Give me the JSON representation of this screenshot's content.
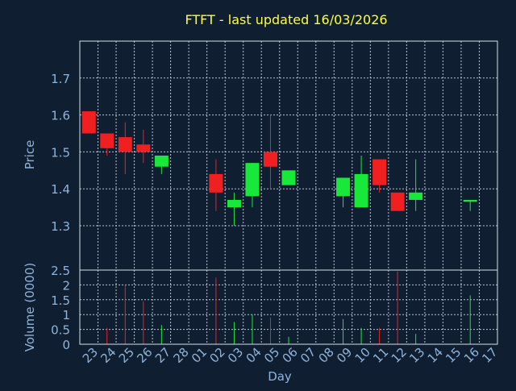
{
  "colors": {
    "background": "#0f1e30",
    "title": "#ffff33",
    "axis_text": "#8fb4dc",
    "grid": "#b8c4d2",
    "plot_border": "#d8e0ea",
    "up": "#18e83a",
    "down": "#f02020"
  },
  "chart_data": [
    {
      "type": "candlestick",
      "title": "FTFT - last updated 16/03/2026",
      "ylabel": "Price",
      "ylim": [
        1.18,
        1.8
      ],
      "yticks": [
        "1.3",
        "1.4",
        "1.5",
        "1.6",
        "1.7"
      ],
      "ytick_values": [
        1.3,
        1.4,
        1.5,
        1.6,
        1.7
      ],
      "grid": true,
      "candles": [
        {
          "day": "23",
          "open": 1.61,
          "high": 1.61,
          "low": 1.55,
          "close": 1.55
        },
        {
          "day": "24",
          "open": 1.55,
          "high": 1.55,
          "low": 1.49,
          "close": 1.51
        },
        {
          "day": "25",
          "open": 1.54,
          "high": 1.58,
          "low": 1.44,
          "close": 1.5
        },
        {
          "day": "26",
          "open": 1.52,
          "high": 1.56,
          "low": 1.47,
          "close": 1.5
        },
        {
          "day": "27",
          "open": 1.46,
          "high": 1.49,
          "low": 1.44,
          "close": 1.49
        },
        {
          "day": "02",
          "open": 1.44,
          "high": 1.48,
          "low": 1.34,
          "close": 1.39
        },
        {
          "day": "03",
          "open": 1.35,
          "high": 1.39,
          "low": 1.3,
          "close": 1.37
        },
        {
          "day": "04",
          "open": 1.38,
          "high": 1.47,
          "low": 1.35,
          "close": 1.47
        },
        {
          "day": "05",
          "open": 1.5,
          "high": 1.6,
          "low": 1.4,
          "close": 1.46
        },
        {
          "day": "06",
          "open": 1.41,
          "high": 1.45,
          "low": 1.41,
          "close": 1.45
        },
        {
          "day": "09",
          "open": 1.38,
          "high": 1.43,
          "low": 1.35,
          "close": 1.43
        },
        {
          "day": "10",
          "open": 1.35,
          "high": 1.49,
          "low": 1.35,
          "close": 1.44
        },
        {
          "day": "11",
          "open": 1.48,
          "high": 1.48,
          "low": 1.39,
          "close": 1.41
        },
        {
          "day": "12",
          "open": 1.39,
          "high": 1.39,
          "low": 1.34,
          "close": 1.34
        },
        {
          "day": "13",
          "open": 1.37,
          "high": 1.48,
          "low": 1.34,
          "close": 1.39
        },
        {
          "day": "16",
          "open": 1.365,
          "high": 1.37,
          "low": 1.34,
          "close": 1.37
        }
      ]
    },
    {
      "type": "bar",
      "ylabel": "Volume (0000)",
      "ylim": [
        0,
        2.5
      ],
      "yticks": [
        "0",
        "0.5",
        "1",
        "1.5",
        "2",
        "2.5"
      ],
      "ytick_values": [
        0,
        0.5,
        1,
        1.5,
        2,
        2.5
      ],
      "xlabel": "Day",
      "categories": [
        "23",
        "24",
        "25",
        "26",
        "27",
        "28",
        "01",
        "02",
        "03",
        "04",
        "05",
        "06",
        "07",
        "08",
        "09",
        "10",
        "11",
        "12",
        "13",
        "14",
        "15",
        "16",
        "17"
      ],
      "volumes": [
        {
          "day": "24",
          "value": 0.55,
          "dir": "down"
        },
        {
          "day": "25",
          "value": 2.0,
          "dir": "down"
        },
        {
          "day": "26",
          "value": 1.45,
          "dir": "down"
        },
        {
          "day": "27",
          "value": 0.65,
          "dir": "up"
        },
        {
          "day": "02",
          "value": 2.25,
          "dir": "down"
        },
        {
          "day": "03",
          "value": 0.75,
          "dir": "up"
        },
        {
          "day": "04",
          "value": 1.0,
          "dir": "up"
        },
        {
          "day": "05",
          "value": 0.9,
          "dir": "down"
        },
        {
          "day": "06",
          "value": 0.25,
          "dir": "up"
        },
        {
          "day": "09",
          "value": 0.85,
          "dir": "up"
        },
        {
          "day": "10",
          "value": 0.55,
          "dir": "up"
        },
        {
          "day": "11",
          "value": 0.55,
          "dir": "down"
        },
        {
          "day": "12",
          "value": 2.45,
          "dir": "down"
        },
        {
          "day": "13",
          "value": 0.35,
          "dir": "up"
        },
        {
          "day": "16",
          "value": 1.65,
          "dir": "up"
        }
      ]
    }
  ]
}
